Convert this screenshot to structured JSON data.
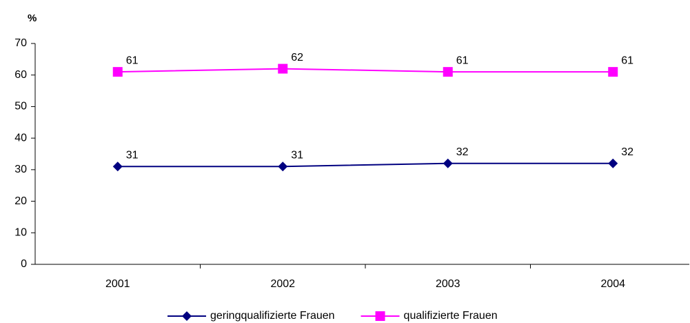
{
  "chart_data": {
    "type": "line",
    "y_label": "%",
    "categories": [
      "2001",
      "2002",
      "2003",
      "2004"
    ],
    "series": [
      {
        "name": "geringqualifizierte Frauen",
        "color": "#000080",
        "marker": "diamond",
        "values": [
          31,
          31,
          32,
          32
        ]
      },
      {
        "name": "qualifizierte Frauen",
        "color": "#ff00ff",
        "marker": "square",
        "values": [
          61,
          62,
          61,
          61
        ]
      }
    ],
    "ylim": [
      0,
      70
    ],
    "yticks": [
      0,
      10,
      20,
      30,
      40,
      50,
      60,
      70
    ],
    "grid": false,
    "legend": "bottom"
  }
}
